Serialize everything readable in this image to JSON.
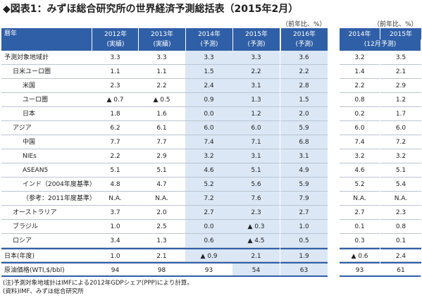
{
  "title": "◆図表1：みずほ総合研究所の世界経済予測総括表（2015年2月）",
  "unit_main": "（前年比、%）",
  "unit_side": "（前年比、%）",
  "table": {
    "label_header": "暦年",
    "columns": [
      {
        "year": "2012年",
        "note": "(実績)"
      },
      {
        "year": "2013年",
        "note": "(実績)"
      },
      {
        "year": "2014年",
        "note": "(予測)"
      },
      {
        "year": "2015年",
        "note": "(予測)"
      },
      {
        "year": "2016年",
        "note": "(予測)"
      }
    ],
    "side_columns": [
      "2014年",
      "2015年"
    ],
    "side_note": "(12月予測)",
    "rows": [
      {
        "label": "予測対象地域計",
        "values": [
          "3.3",
          "3.3",
          "3.3",
          "3.3",
          "3.6"
        ],
        "side": [
          "3.2",
          "3.5"
        ]
      },
      {
        "label": "日米ユーロ圏",
        "values": [
          "1.1",
          "1.1",
          "1.5",
          "2.2",
          "2.2"
        ],
        "side": [
          "1.4",
          "2.1"
        ]
      },
      {
        "label": "米国",
        "values": [
          "2.3",
          "2.2",
          "2.4",
          "3.1",
          "2.8"
        ],
        "side": [
          "2.2",
          "2.9"
        ]
      },
      {
        "label": "ユーロ圏",
        "values": [
          "▲ 0.7",
          "▲ 0.5",
          "0.9",
          "1.3",
          "1.5"
        ],
        "side": [
          "0.8",
          "1.2"
        ]
      },
      {
        "label": "日本",
        "values": [
          "1.8",
          "1.6",
          "0.0",
          "1.2",
          "2.0"
        ],
        "side": [
          "0.2",
          "1.7"
        ]
      },
      {
        "label": "アジア",
        "values": [
          "6.2",
          "6.1",
          "6.0",
          "6.0",
          "5.9"
        ],
        "side": [
          "6.0",
          "6.0"
        ]
      },
      {
        "label": "中国",
        "values": [
          "7.7",
          "7.7",
          "7.4",
          "7.1",
          "6.8"
        ],
        "side": [
          "7.4",
          "7.2"
        ]
      },
      {
        "label": "NIEs",
        "values": [
          "2.2",
          "2.9",
          "3.2",
          "3.1",
          "3.1"
        ],
        "side": [
          "3.2",
          "3.2"
        ]
      },
      {
        "label": "ASEAN5",
        "values": [
          "5.1",
          "5.1",
          "4.6",
          "5.1",
          "4.9"
        ],
        "side": [
          "4.6",
          "5.1"
        ]
      },
      {
        "label": "インド（2004年度基準）",
        "values": [
          "4.8",
          "4.7",
          "5.2",
          "5.6",
          "5.9"
        ],
        "side": [
          "5.2",
          "5.4"
        ]
      },
      {
        "label": "（参考：2011年度基準）",
        "values": [
          "N.A.",
          "N.A.",
          "7.2",
          "7.6",
          "7.9"
        ],
        "side": [
          "N.A.",
          "N.A."
        ]
      },
      {
        "label": "オーストラリア",
        "values": [
          "3.7",
          "2.0",
          "2.7",
          "2.3",
          "2.7"
        ],
        "side": [
          "2.7",
          "2.3"
        ]
      },
      {
        "label": "ブラジル",
        "values": [
          "1.0",
          "2.5",
          "0.0",
          "▲ 0.3",
          "1.0"
        ],
        "side": [
          "0.1",
          "0.8"
        ]
      },
      {
        "label": "ロシア",
        "values": [
          "3.4",
          "1.3",
          "0.6",
          "▲ 4.5",
          "0.5"
        ],
        "side": [
          "0.3",
          "0.1"
        ]
      },
      {
        "label": "日本(年度)",
        "values": [
          "1.0",
          "2.1",
          "▲ 0.9",
          "2.1",
          "1.9"
        ],
        "side": [
          "▲ 0.6",
          "2.4"
        ]
      },
      {
        "label": "原油価格(WTI,$/bbl)",
        "values": [
          "94",
          "98",
          "93",
          "54",
          "63"
        ],
        "side": [
          "93",
          "61"
        ]
      }
    ]
  },
  "notes": [
    "(注)予測対象地域計はIMFによる2012年GDPシェア(PPP)により計算。",
    "(資料)IMF、みずほ総合研究所"
  ]
}
